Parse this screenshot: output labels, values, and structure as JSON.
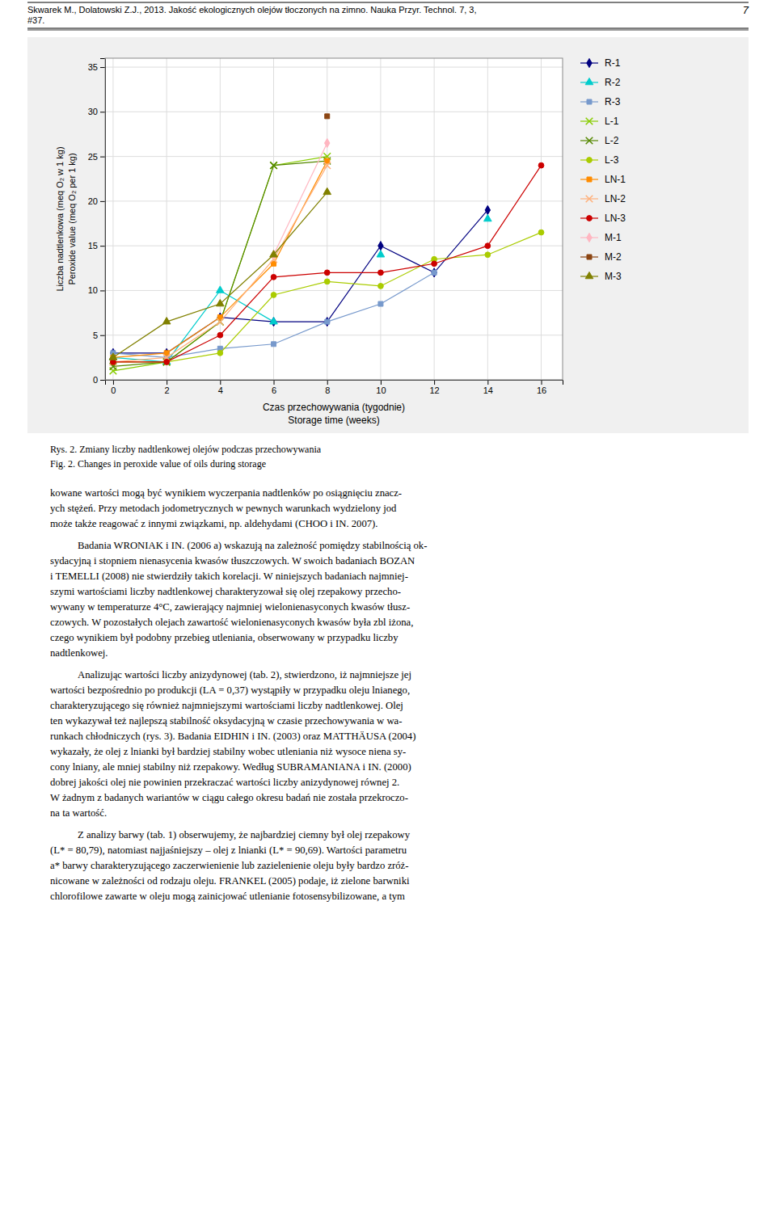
{
  "chart_data": {
    "type": "line",
    "title": "Rys. 2. Zmiany liczby nadtlenkowej olejów podczas przechowywania",
    "subtitle": "Fig. 2. Changes in peroxide value of oils during storage",
    "xlabel": [
      "Czas przechowywania (tygodnie)",
      "Storage time (weeks)"
    ],
    "ylabel": [
      "Liczba nadtlenkowa (meq O₂ w 1 kg)",
      "Peroxide value (meq O₂ per 1 kg)"
    ],
    "x": [
      0,
      2,
      4,
      6,
      8,
      10,
      12,
      14,
      16
    ],
    "series": [
      {
        "name": "R-1",
        "color": "#000080",
        "marker": "diamond",
        "values": [
          3.0,
          3.0,
          7.0,
          6.5,
          6.5,
          15.0,
          12.0,
          19.0,
          null
        ]
      },
      {
        "name": "R-2",
        "color": "#00CCCC",
        "marker": "triangle",
        "values": [
          2.5,
          2.0,
          10.0,
          6.5,
          null,
          14.0,
          null,
          18.0,
          null
        ]
      },
      {
        "name": "R-3",
        "color": "#7799CC",
        "marker": "square",
        "values": [
          3.0,
          2.5,
          3.5,
          4.0,
          6.5,
          8.5,
          12.0,
          null,
          null
        ]
      },
      {
        "name": "L-1",
        "color": "#88CC00",
        "marker": "x",
        "values": [
          1.0,
          2.0,
          6.5,
          24.0,
          25.0,
          null,
          null,
          null,
          null
        ]
      },
      {
        "name": "L-2",
        "color": "#558800",
        "marker": "x",
        "values": [
          1.5,
          2.0,
          6.5,
          24.0,
          24.5,
          null,
          null,
          null,
          null
        ]
      },
      {
        "name": "L-3",
        "color": "#AACC00",
        "marker": "circle",
        "values": [
          2.0,
          2.0,
          3.0,
          9.5,
          11.0,
          10.5,
          13.5,
          14.0,
          16.5
        ]
      },
      {
        "name": "LN-1",
        "color": "#FF8C00",
        "marker": "square",
        "values": [
          2.5,
          3.0,
          7.0,
          13.0,
          24.5,
          null,
          null,
          null,
          null
        ]
      },
      {
        "name": "LN-2",
        "color": "#FFB07A",
        "marker": "x",
        "values": [
          2.0,
          2.5,
          6.5,
          13.5,
          24.0,
          null,
          null,
          null,
          null
        ]
      },
      {
        "name": "LN-3",
        "color": "#CC0000",
        "marker": "circle",
        "values": [
          2.0,
          2.0,
          5.0,
          11.5,
          12.0,
          12.0,
          13.0,
          15.0,
          24.0
        ]
      },
      {
        "name": "M-1",
        "color": "#FFB6C1",
        "marker": "diamond",
        "values": [
          null,
          null,
          null,
          14.0,
          26.5,
          null,
          null,
          null,
          null
        ]
      },
      {
        "name": "M-2",
        "color": "#8B4513",
        "marker": "square",
        "values": [
          null,
          null,
          null,
          null,
          29.5,
          null,
          null,
          null,
          null
        ]
      },
      {
        "name": "M-3",
        "color": "#808000",
        "marker": "triangle",
        "values": [
          2.5,
          6.5,
          8.5,
          14.0,
          21.0,
          null,
          null,
          null,
          null
        ]
      }
    ],
    "xlim": [
      -0.3,
      16.8
    ],
    "ylim": [
      0,
      36
    ],
    "xticks": [
      0,
      2,
      4,
      6,
      8,
      10,
      12,
      14,
      16
    ],
    "yticks": [
      0,
      5,
      10,
      15,
      20,
      25,
      30,
      35
    ],
    "grid": true,
    "legend": "right"
  },
  "page": {
    "number": "7",
    "header": [
      "Skwarek M., Dolatowski Z.J., 2013. Jakość ekologicznych olejów tłoczonych na zimno. Nauka Przyr. Technol. 7, 3,",
      "#37."
    ],
    "body": [
      [
        "kowane wartości mogą być wynikiem wyczerpania nadtlenków po osiągnięciu znacz-",
        "ych stężeń. Przy metodach jodometrycznych w pewnych warunkach wydzielony jod",
        "może także reagować z innymi związkami, np. aldehydami (CHOO i IN. 2007)."
      ],
      [
        "Badania WRONIAK i IN. (2006 a) wskazują na zależność pomiędzy stabilnością ok-",
        "sydacyjną i stopniem nienasycenia kwasów tłuszczowych. W swoich badaniach BOZAN",
        "i TEMELLI (2008) nie stwierdziły takich korelacji. W niniejszych badaniach najmniej-",
        "szymi wartościami liczby nadtlenkowej charakteryzował się olej rzepakowy przecho-",
        "wywany w temperaturze 4°C, zawierający najmniej wielonienasyconych kwasów tłusz-",
        "czowych. W pozostałych olejach zawartość wielonienasyconych kwasów była zbl iżona,",
        "czego wynikiem był podobny przebieg utleniania, obserwowany w przypadku liczby",
        "nadtlenkowej."
      ],
      [
        "Analizując wartości liczby anizydynowej (tab. 2), stwierdzono, iż najmniejsze jej",
        "wartości bezpośrednio po produkcji (LA = 0,37) wystąpiły w przypadku oleju lnianego,",
        "charakteryzującego się również najmniejszymi wartościami liczby nadtlenkowej. Olej",
        "ten wykazywał też najlepszą stabilność oksydacyjną w czasie przechowywania w wa-",
        "runkach chłodniczych (rys. 3). Badania EIDHIN i IN. (2003) oraz MATTHÄUSA (2004)",
        "wykazały, że olej z lnianki był bardziej stabilny wobec utleniania niż wysoce niena sy-",
        "cony lniany, ale mniej stabilny niż rzepakowy. Według SUBRAMANIANA i IN. (2000)",
        "dobrej jakości olej nie powinien przekraczać wartości liczby anizydynowej równej 2.",
        "W żadnym z badanych wariantów w ciągu całego okresu badań nie została przekroczo-",
        "na ta wartość."
      ],
      [
        "Z analizy barwy (tab. 1) obserwujemy, że najbardziej ciemny był olej rzepakowy",
        "(L* = 80,79), natomiast najjaśniejszy – olej z lnianki (L* = 90,69). Wartości parametru",
        "a* barwy charakteryzującego zaczerwienienie lub zazielenienie oleju były bardzo zróż-",
        "nicowane w zależności od rodzaju oleju. FRANKEL (2005) podaje, iż zielone barwniki",
        "chlorofilowe zawarte w oleju mogą zainicjować utlenianie fotosensybilizowane, a tym"
      ]
    ]
  }
}
